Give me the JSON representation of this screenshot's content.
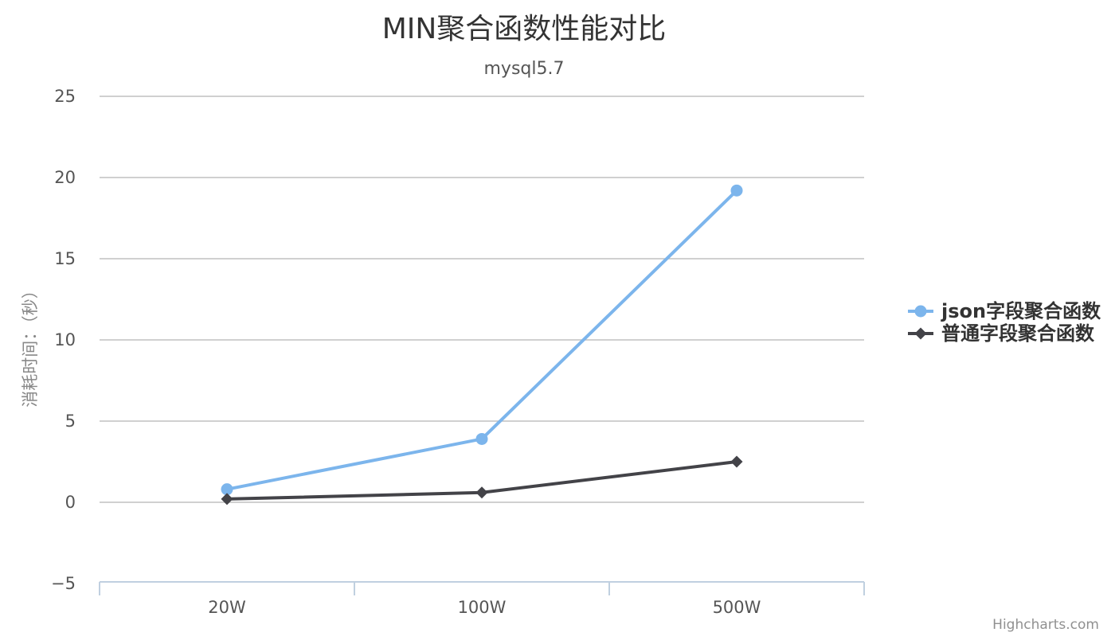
{
  "chart_data": {
    "type": "line",
    "title": "MIN聚合函数性能对比",
    "subtitle": "mysql5.7",
    "xlabel": "",
    "ylabel": "消耗时间：（秒）",
    "categories": [
      "20W",
      "100W",
      "500W"
    ],
    "yticks": [
      25,
      20,
      15,
      10,
      5,
      0,
      -5
    ],
    "ylim": [
      -5,
      25
    ],
    "grid": true,
    "legend_position": "right",
    "series": [
      {
        "name": "json字段聚合函数",
        "values": [
          0.8,
          3.9,
          19.2
        ],
        "color": "#7cb5ec",
        "marker": "circle"
      },
      {
        "name": "普通字段聚合函数",
        "values": [
          0.2,
          0.6,
          2.5
        ],
        "color": "#434348",
        "marker": "diamond"
      }
    ]
  },
  "credits": "Highcharts.com"
}
